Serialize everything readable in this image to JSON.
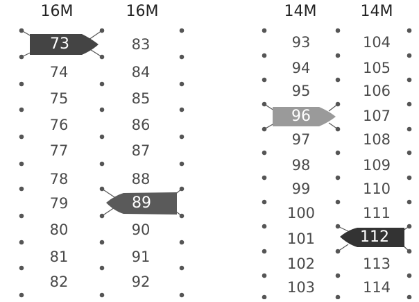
{
  "dock_a": {
    "headers": [
      "16M",
      "16M"
    ],
    "column_left": [
      "74",
      "75",
      "76",
      "77",
      "78",
      "79",
      "80",
      "81",
      "82"
    ],
    "column_right": [
      "83",
      "84",
      "85",
      "86",
      "87",
      "88",
      "90",
      "91",
      "92"
    ]
  },
  "dock_b": {
    "headers": [
      "14M",
      "14M"
    ],
    "column_left": [
      "93",
      "94",
      "95",
      "97",
      "98",
      "99",
      "100",
      "101",
      "102",
      "103"
    ],
    "column_right": [
      "104",
      "105",
      "106",
      "107",
      "108",
      "109",
      "110",
      "111",
      "113",
      "114"
    ]
  },
  "boats": [
    {
      "label": "73",
      "color": "#444444"
    },
    {
      "label": "89",
      "color": "#5a5a5a"
    },
    {
      "label": "96",
      "color": "#9a9a9a"
    },
    {
      "label": "112",
      "color": "#333333"
    }
  ],
  "colors": {
    "text": "#4a4a4a",
    "header": "#222222",
    "post": "#555555"
  }
}
